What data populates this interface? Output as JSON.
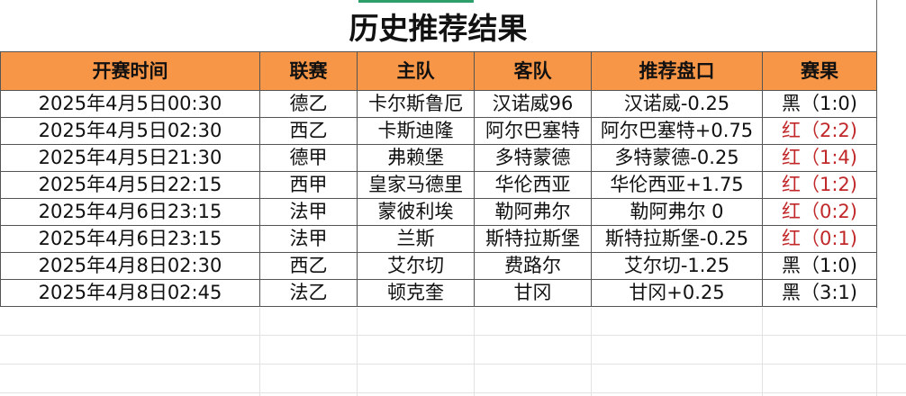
{
  "title": "历史推荐结果",
  "columns": [
    "开赛时间",
    "联赛",
    "主队",
    "客队",
    "推荐盘口",
    "赛果"
  ],
  "rows": [
    {
      "time": "2025年4月5日00:30",
      "league": "德乙",
      "home": "卡尔斯鲁厄",
      "away": "汉诺威96",
      "pick": "汉诺威-0.25",
      "result": "黑（1:0)",
      "status": "black"
    },
    {
      "time": "2025年4月5日02:30",
      "league": "西乙",
      "home": "卡斯迪隆",
      "away": "阿尔巴塞特",
      "pick": "阿尔巴塞特+0.75",
      "result": "红（2:2)",
      "status": "red"
    },
    {
      "time": "2025年4月5日21:30",
      "league": "德甲",
      "home": "弗赖堡",
      "away": "多特蒙德",
      "pick": "多特蒙德-0.25",
      "result": "红（1:4)",
      "status": "red"
    },
    {
      "time": "2025年4月5日22:15",
      "league": "西甲",
      "home": "皇家马德里",
      "away": "华伦西亚",
      "pick": "华伦西亚+1.75",
      "result": "红（1:2)",
      "status": "red"
    },
    {
      "time": "2025年4月6日23:15",
      "league": "法甲",
      "home": "蒙彼利埃",
      "away": "勒阿弗尔",
      "pick": "勒阿弗尔 0",
      "result": "红（0:2)",
      "status": "red"
    },
    {
      "time": "2025年4月6日23:15",
      "league": "法甲",
      "home": "兰斯",
      "away": "斯特拉斯堡",
      "pick": "斯特拉斯堡-0.25",
      "result": "红（0:1)",
      "status": "red"
    },
    {
      "time": "2025年4月8日02:30",
      "league": "西乙",
      "home": "艾尔切",
      "away": "费路尔",
      "pick": "艾尔切-1.25",
      "result": "黑（1:0)",
      "status": "black"
    },
    {
      "time": "2025年4月8日02:45",
      "league": "法乙",
      "home": "顿克奎",
      "away": "甘冈",
      "pick": "甘冈+0.25",
      "result": "黑（3:1)",
      "status": "black"
    }
  ],
  "colors": {
    "header": "#f79646",
    "red": "#c0282a",
    "black": "#111111"
  }
}
